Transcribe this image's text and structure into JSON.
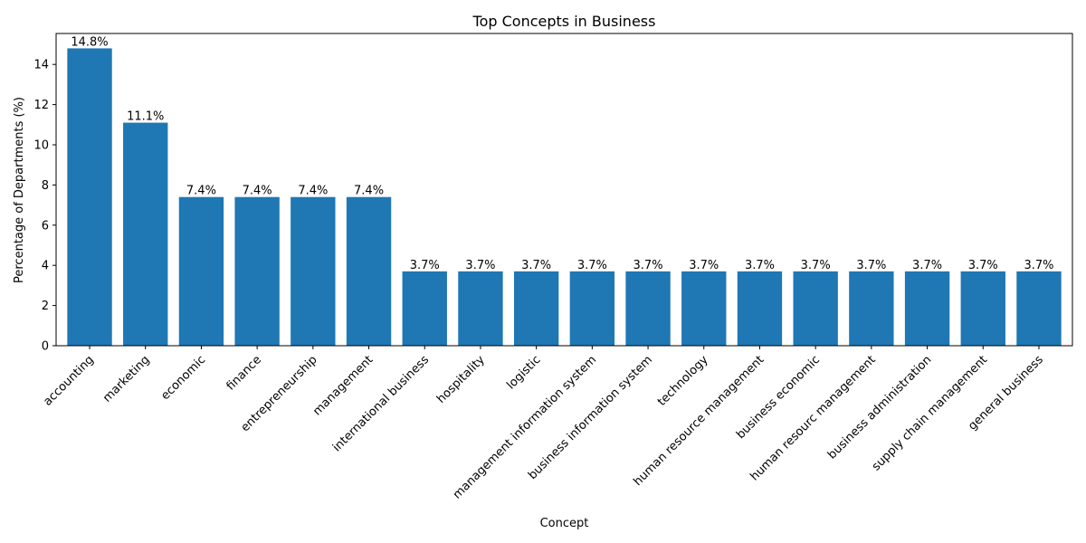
{
  "chart_data": {
    "type": "bar",
    "title": "Top Concepts in Business",
    "xlabel": "Concept",
    "ylabel": "Percentage of Departments (%)",
    "categories": [
      "accounting",
      "marketing",
      "economic",
      "finance",
      "entrepreneurship",
      "management",
      "international business",
      "hospitality",
      "logistic",
      "management information system",
      "business information system",
      "technology",
      "human resource management",
      "business economic",
      "human resourc management",
      "business administration",
      "supply chain management",
      "general business"
    ],
    "values": [
      14.8,
      11.1,
      7.4,
      7.4,
      7.4,
      7.4,
      3.7,
      3.7,
      3.7,
      3.7,
      3.7,
      3.7,
      3.7,
      3.7,
      3.7,
      3.7,
      3.7,
      3.7
    ],
    "value_labels": [
      "14.8%",
      "11.1%",
      "7.4%",
      "7.4%",
      "7.4%",
      "7.4%",
      "3.7%",
      "3.7%",
      "3.7%",
      "3.7%",
      "3.7%",
      "3.7%",
      "3.7%",
      "3.7%",
      "3.7%",
      "3.7%",
      "3.7%",
      "3.7%"
    ],
    "yticks": [
      0,
      2,
      4,
      6,
      8,
      10,
      12,
      14
    ],
    "ylim": [
      0,
      15.54
    ],
    "grid": false,
    "bar_color": "#1f77b4"
  }
}
